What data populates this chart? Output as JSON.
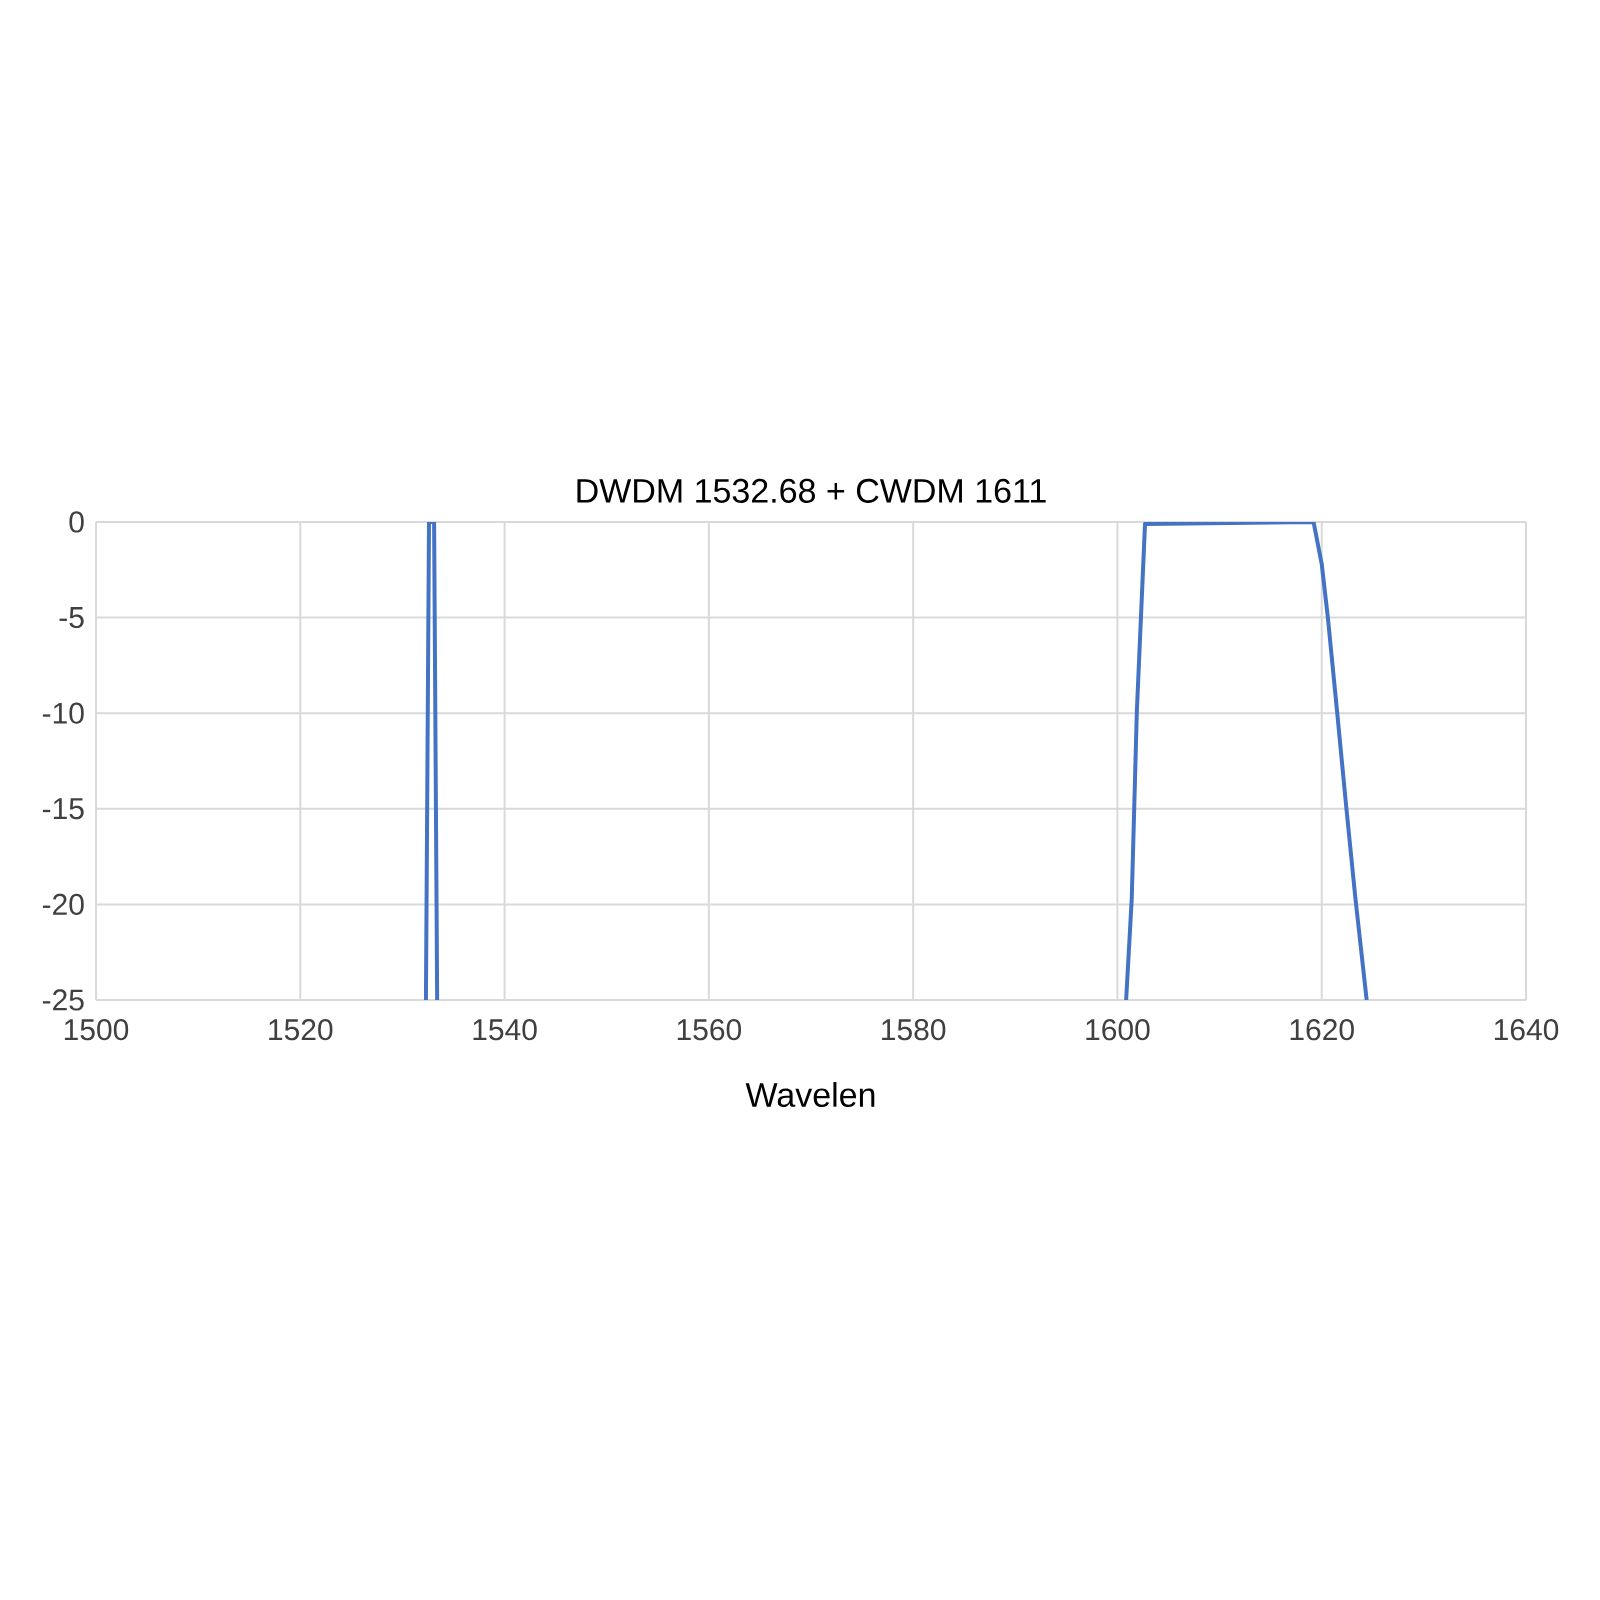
{
  "chart_data": {
    "type": "line",
    "title": "DWDM 1532.68 + CWDM 1611",
    "xlabel": "Wavelen",
    "xlim": [
      1500,
      1640
    ],
    "xticks": [
      1500,
      1520,
      1540,
      1560,
      1580,
      1600,
      1620,
      1640
    ],
    "ylim": [
      -25,
      0
    ],
    "yticks": [
      0,
      -5,
      -10,
      -15,
      -20,
      -25
    ],
    "grid": true,
    "marker": "none",
    "line_style": "solid",
    "series": [
      {
        "color": "#4472c4",
        "x": [
          1532.3,
          1532.6,
          1533.1,
          1533.4,
          null,
          1600.85,
          1601.4,
          1601.9,
          1602.3,
          1602.7,
          1619.2,
          1620.0,
          1620.6,
          1621.5,
          1622.4,
          1623.3,
          1624.4
        ],
        "values": [
          -25,
          0,
          0,
          -25,
          null,
          -25,
          -19.7,
          -9.9,
          -5.0,
          -0.1,
          0,
          -2.2,
          -5.0,
          -9.9,
          -14.9,
          -19.7,
          -25
        ]
      }
    ]
  }
}
